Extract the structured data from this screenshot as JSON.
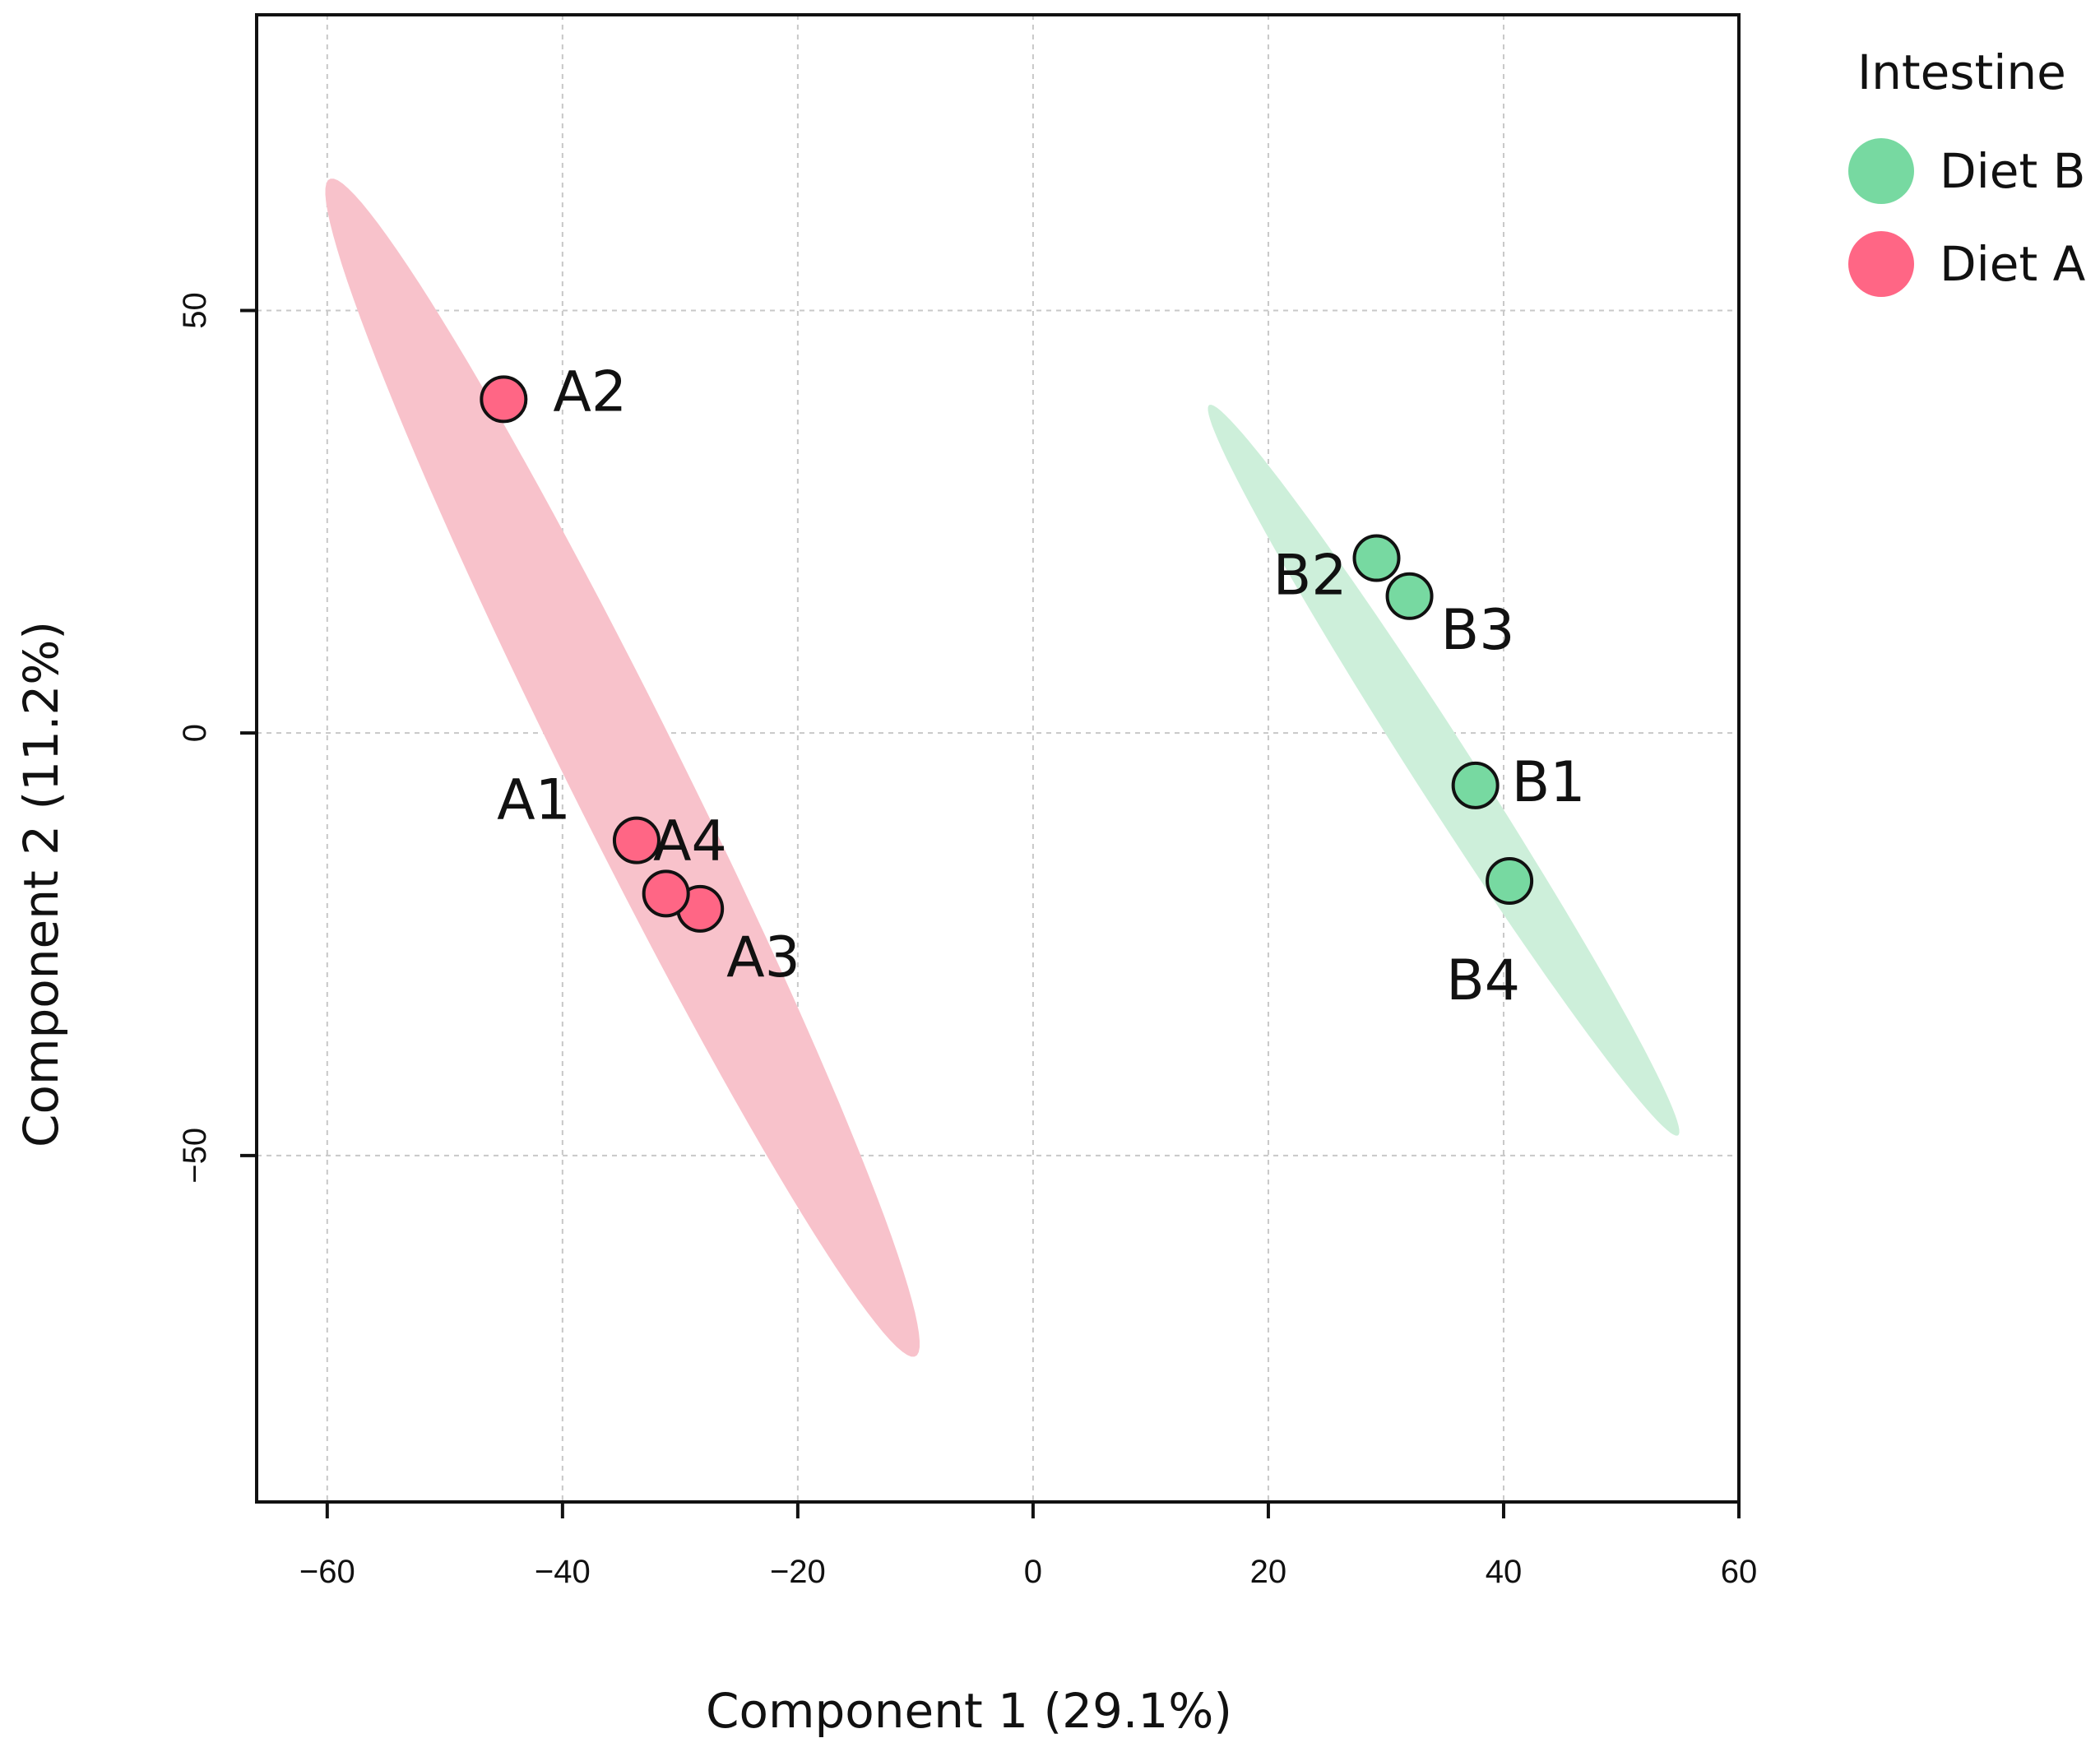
{
  "chart_data": {
    "type": "scatter",
    "title": "",
    "xlabel": "Component 1 (29.1%)",
    "ylabel": "Component 2 (11.2%)",
    "xlim": [
      -66,
      60
    ],
    "ylim": [
      -91,
      85
    ],
    "x_ticks": [
      -60,
      -40,
      -20,
      0,
      20,
      40,
      60
    ],
    "x_tick_labels": [
      "−60",
      "−40",
      "−20",
      "0",
      "20",
      "40",
      "60"
    ],
    "y_ticks": [
      -50,
      0,
      50
    ],
    "y_tick_labels": [
      "−50",
      "0",
      "50"
    ],
    "grid": true,
    "legend": {
      "title": "Intestine",
      "placement": "top-right, outside plot",
      "entries": [
        {
          "name": "Diet B",
          "color": "#77D9A1"
        },
        {
          "name": "Diet A",
          "color": "#FF6685"
        }
      ]
    },
    "ellipses": [
      {
        "group": "Diet A",
        "color": "#F8C2CB",
        "center": [
          -34.9,
          -4.1
        ],
        "semi_major": 74,
        "semi_minor": 5.0,
        "angle_deg": -70.4
      },
      {
        "group": "Diet B",
        "color": "#CDEFDA",
        "center": [
          34.9,
          -4.4
        ],
        "semi_major": 47.6,
        "semi_minor": 2.7,
        "angle_deg": -65.3
      }
    ],
    "series": [
      {
        "name": "Diet A",
        "color": "#FF6685",
        "points": [
          {
            "label": "A1",
            "x": -33.7,
            "y": -12.7
          },
          {
            "label": "A2",
            "x": -45.0,
            "y": 39.5
          },
          {
            "label": "A3",
            "x": -28.3,
            "y": -20.8
          },
          {
            "label": "A4",
            "x": -31.2,
            "y": -19.0
          }
        ]
      },
      {
        "name": "Diet B",
        "color": "#77D9A1",
        "points": [
          {
            "label": "B1",
            "x": 37.6,
            "y": -6.2
          },
          {
            "label": "B2",
            "x": 29.2,
            "y": 20.7
          },
          {
            "label": "B3",
            "x": 32.0,
            "y": 16.2
          },
          {
            "label": "B4",
            "x": 40.5,
            "y": -17.5
          }
        ]
      }
    ]
  }
}
